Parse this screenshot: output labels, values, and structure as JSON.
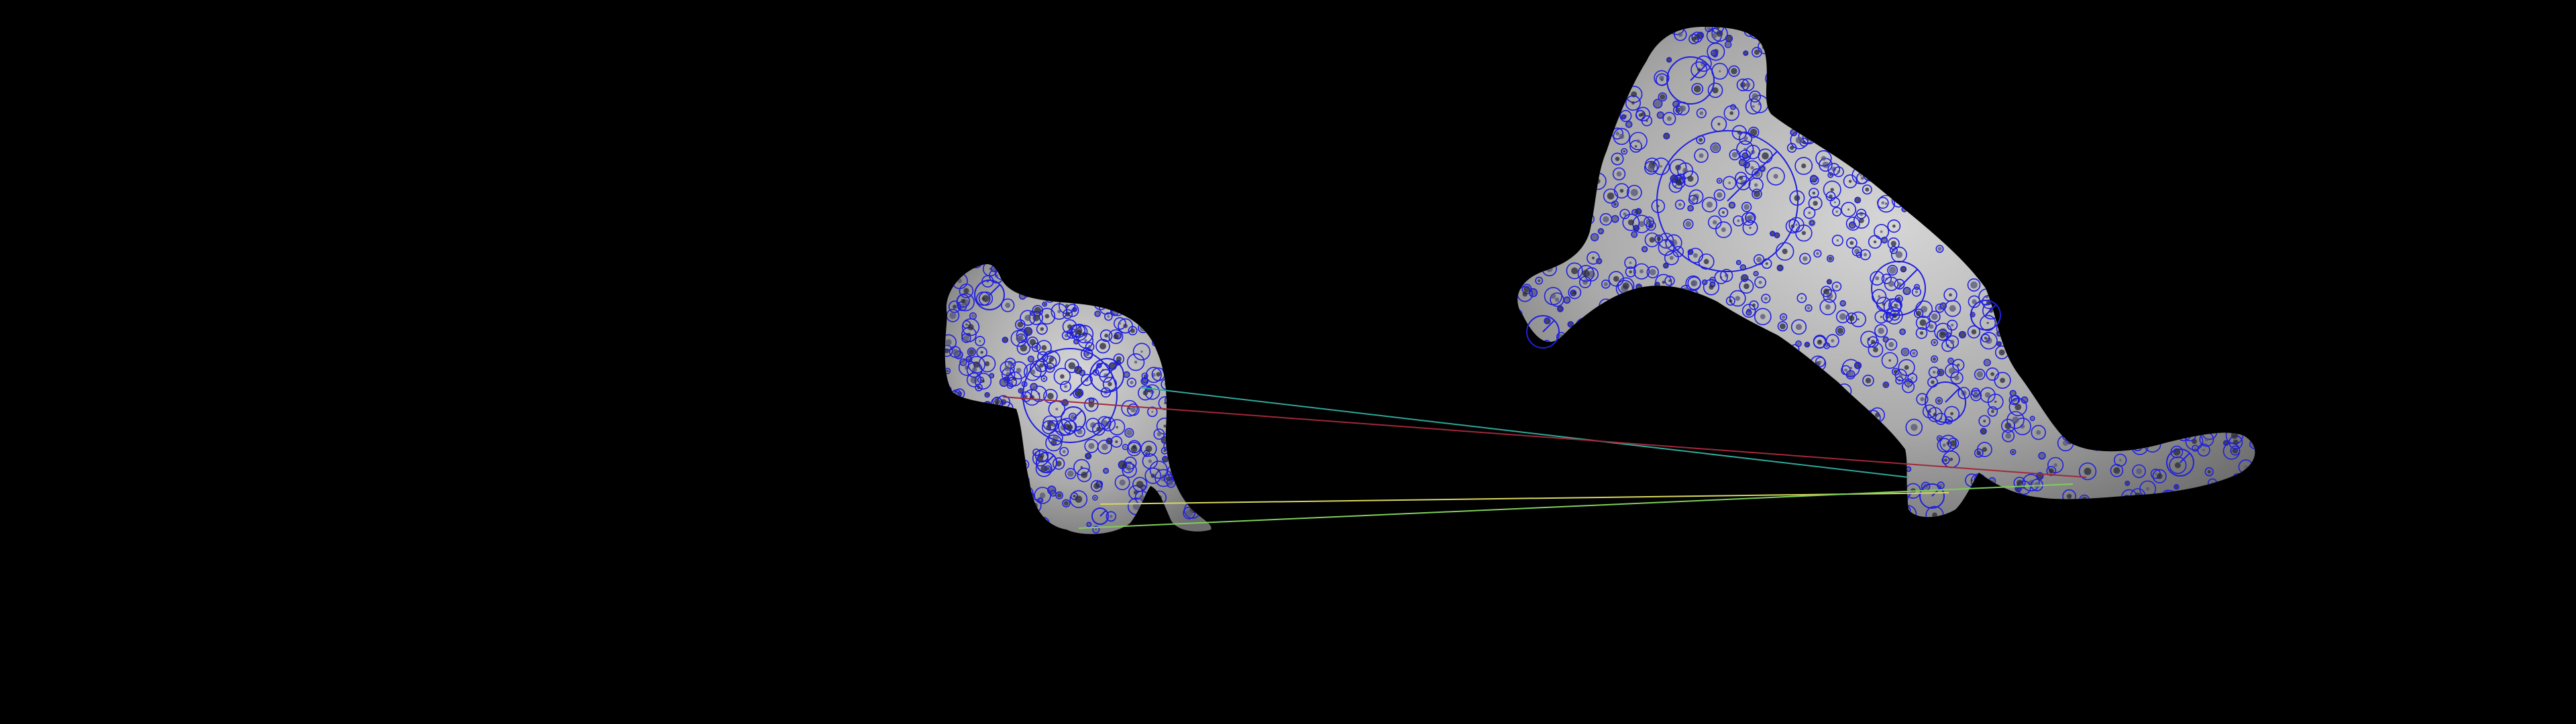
{
  "scene": {
    "background": "#000000",
    "keypoint_color": "#1f1fe0",
    "surface_color": "#bdbdbd",
    "objects": [
      {
        "name": "small-animal-figure",
        "role": "query"
      },
      {
        "name": "large-animal-figure",
        "role": "train"
      }
    ],
    "match_lines": [
      {
        "name": "teal-match",
        "color": "#2fa89a"
      },
      {
        "name": "red-match",
        "color": "#a0283a"
      },
      {
        "name": "yellow-match",
        "color": "#d8d860"
      },
      {
        "name": "green-match",
        "color": "#7fcf5a"
      }
    ],
    "match_count": 4
  }
}
